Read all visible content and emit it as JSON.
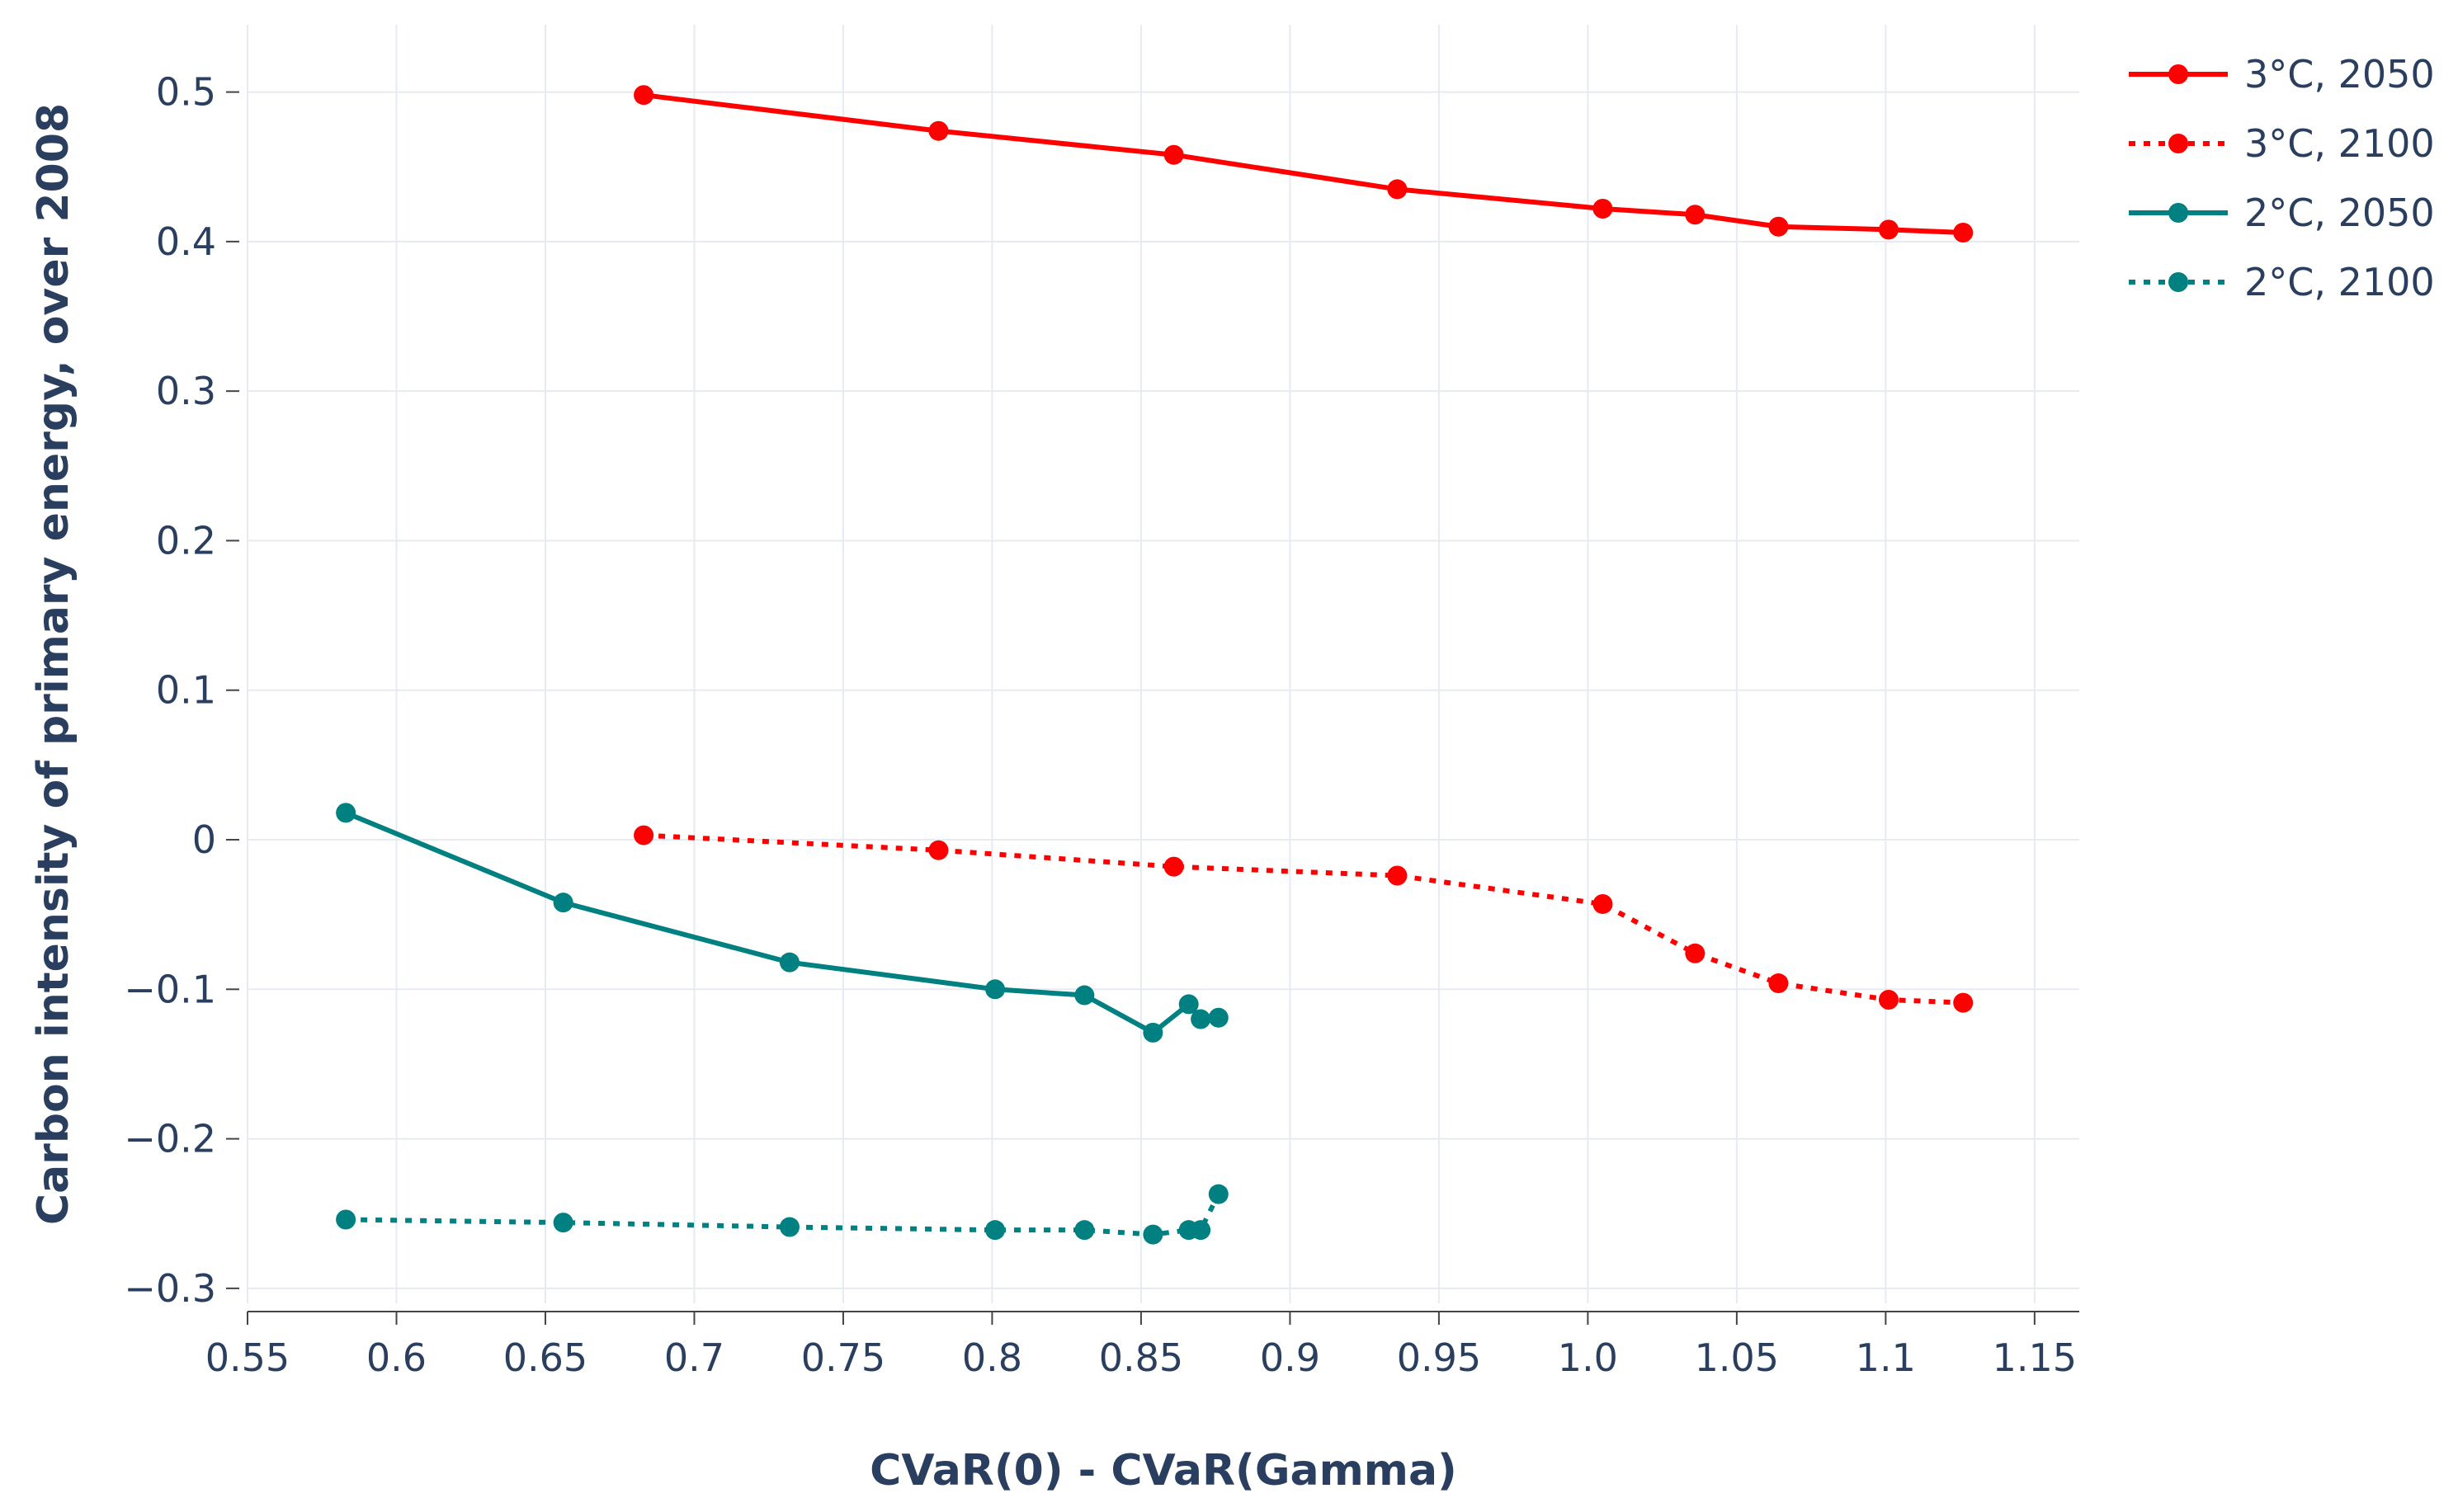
{
  "chart_data": {
    "type": "line",
    "title": "",
    "xlabel": "CVaR(0) - CVaR(Gamma)",
    "ylabel": "Carbon intensity of primary energy, over 2008",
    "xlim": [
      0.55,
      1.165
    ],
    "ylim": [
      -0.31,
      0.545
    ],
    "x_ticks": [
      0.55,
      0.6,
      0.65,
      0.7,
      0.75,
      0.8,
      0.85,
      0.9,
      0.95,
      1.0,
      1.05,
      1.1,
      1.15
    ],
    "x_tick_labels": [
      "0.55",
      "0.6",
      "0.65",
      "0.7",
      "0.75",
      "0.8",
      "0.85",
      "0.9",
      "0.95",
      "1.0",
      "1.05",
      "1.1",
      "1.15"
    ],
    "y_ticks": [
      -0.3,
      -0.2,
      -0.1,
      0,
      0.1,
      0.2,
      0.3,
      0.4,
      0.5
    ],
    "y_tick_labels": [
      "−0.3",
      "−0.2",
      "−0.1",
      "0",
      "0.1",
      "0.2",
      "0.3",
      "0.4",
      "0.5"
    ],
    "grid": true,
    "legend_position": "top-right",
    "series": [
      {
        "name": "3°C, 2050",
        "color": "#ff0000",
        "dash": "solid",
        "x": [
          0.683,
          0.782,
          0.861,
          0.936,
          1.005,
          1.036,
          1.064,
          1.101,
          1.126
        ],
        "y": [
          0.498,
          0.474,
          0.458,
          0.435,
          0.422,
          0.418,
          0.41,
          0.408,
          0.406
        ]
      },
      {
        "name": "3°C, 2100",
        "color": "#ff0000",
        "dash": "dot",
        "x": [
          0.683,
          0.782,
          0.861,
          0.936,
          1.005,
          1.036,
          1.064,
          1.101,
          1.126
        ],
        "y": [
          0.003,
          -0.007,
          -0.018,
          -0.024,
          -0.043,
          -0.076,
          -0.096,
          -0.107,
          -0.109
        ]
      },
      {
        "name": "2°C, 2050",
        "color": "#008080",
        "dash": "solid",
        "x": [
          0.583,
          0.656,
          0.732,
          0.801,
          0.831,
          0.854,
          0.866,
          0.87,
          0.876
        ],
        "y": [
          0.018,
          -0.042,
          -0.082,
          -0.1,
          -0.104,
          -0.129,
          -0.11,
          -0.12,
          -0.119
        ]
      },
      {
        "name": "2°C, 2100",
        "color": "#008080",
        "dash": "dot",
        "x": [
          0.583,
          0.656,
          0.732,
          0.801,
          0.831,
          0.854,
          0.866,
          0.87,
          0.876
        ],
        "y": [
          -0.254,
          -0.256,
          -0.259,
          -0.261,
          -0.261,
          -0.264,
          -0.261,
          -0.261,
          -0.237
        ]
      }
    ]
  }
}
